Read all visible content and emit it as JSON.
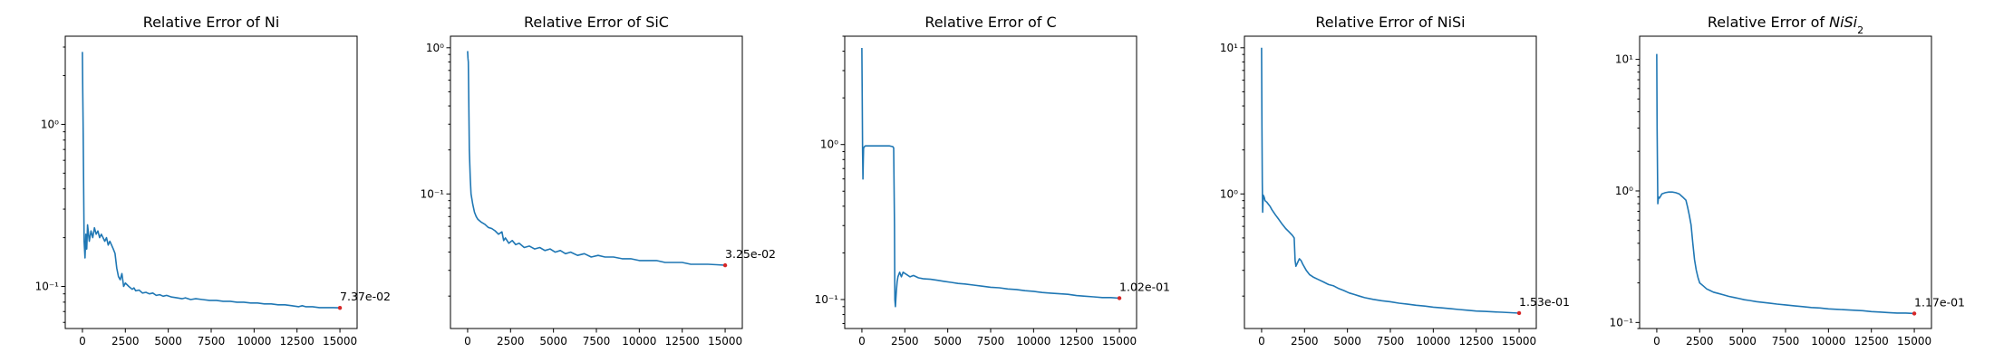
{
  "colors": {
    "series": "#1f77b4",
    "final_marker": "#d62728",
    "axes": "#000000",
    "background": "#ffffff"
  },
  "chart_data": [
    {
      "type": "line",
      "title": "Relative Error of Ni",
      "title_parts": [
        {
          "text": "Relative Error of Ni"
        }
      ],
      "xlabel": "",
      "ylabel": "",
      "yscale": "log",
      "grid": false,
      "legend": "none",
      "xlim": [
        -1000,
        16000
      ],
      "ylim": [
        0.055,
        3.5
      ],
      "xticks": [
        0,
        2500,
        5000,
        7500,
        10000,
        12500,
        15000
      ],
      "xtick_labels": [
        "0",
        "2500",
        "5000",
        "7500",
        "10000",
        "12500",
        "15000"
      ],
      "yticks": [
        0.1,
        1
      ],
      "ytick_labels": [
        "10⁻¹",
        "10⁰"
      ],
      "final_value": {
        "x": 15000,
        "y": 0.0737,
        "label": "7.37e-02"
      },
      "series": [
        {
          "x": [
            0,
            20,
            40,
            60,
            80,
            100,
            150,
            200,
            250,
            300,
            400,
            500,
            600,
            700,
            800,
            900,
            1000,
            1100,
            1200,
            1300,
            1400,
            1500,
            1600,
            1700,
            1800,
            1900,
            2000,
            2100,
            2200,
            2300,
            2400,
            2500,
            2700,
            2900,
            3000,
            3100,
            3300,
            3500,
            3700,
            3900,
            4100,
            4300,
            4500,
            4700,
            4900,
            5200,
            5500,
            5800,
            6000,
            6300,
            6600,
            7000,
            7400,
            7800,
            8200,
            8600,
            9000,
            9400,
            9800,
            10200,
            10600,
            11000,
            11400,
            11800,
            12200,
            12600,
            12800,
            13000,
            13400,
            13800,
            14200,
            14600,
            15000
          ],
          "y": [
            2.8,
            1.6,
            1.0,
            0.55,
            0.3,
            0.19,
            0.15,
            0.21,
            0.17,
            0.24,
            0.19,
            0.22,
            0.2,
            0.23,
            0.21,
            0.22,
            0.2,
            0.21,
            0.2,
            0.19,
            0.2,
            0.18,
            0.19,
            0.18,
            0.17,
            0.16,
            0.13,
            0.115,
            0.11,
            0.12,
            0.1,
            0.105,
            0.1,
            0.096,
            0.098,
            0.094,
            0.095,
            0.091,
            0.092,
            0.09,
            0.091,
            0.088,
            0.089,
            0.087,
            0.088,
            0.086,
            0.085,
            0.084,
            0.085,
            0.083,
            0.084,
            0.083,
            0.082,
            0.082,
            0.081,
            0.081,
            0.08,
            0.08,
            0.079,
            0.079,
            0.078,
            0.078,
            0.077,
            0.077,
            0.076,
            0.075,
            0.076,
            0.075,
            0.075,
            0.074,
            0.074,
            0.074,
            0.0737
          ]
        }
      ]
    },
    {
      "type": "line",
      "title": "Relative Error of SiC",
      "title_parts": [
        {
          "text": "Relative Error of SiC"
        }
      ],
      "xlabel": "",
      "ylabel": "",
      "yscale": "log",
      "grid": false,
      "legend": "none",
      "xlim": [
        -1000,
        16000
      ],
      "ylim": [
        0.012,
        1.2
      ],
      "xticks": [
        0,
        2500,
        5000,
        7500,
        10000,
        12500,
        15000
      ],
      "xtick_labels": [
        "0",
        "2500",
        "5000",
        "7500",
        "10000",
        "12500",
        "15000"
      ],
      "yticks": [
        0.1,
        1
      ],
      "ytick_labels": [
        "10⁻¹",
        "10⁰"
      ],
      "final_value": {
        "x": 15000,
        "y": 0.0325,
        "label": "3.25e-02"
      },
      "series": [
        {
          "x": [
            0,
            20,
            40,
            60,
            80,
            100,
            150,
            200,
            300,
            400,
            500,
            600,
            800,
            1000,
            1200,
            1400,
            1600,
            1800,
            2000,
            2100,
            2200,
            2400,
            2600,
            2800,
            3000,
            3300,
            3600,
            3900,
            4200,
            4500,
            4800,
            5100,
            5400,
            5700,
            6000,
            6400,
            6800,
            7200,
            7600,
            8000,
            8500,
            9000,
            9500,
            10000,
            10500,
            11000,
            11500,
            12000,
            12500,
            13000,
            13500,
            14000,
            14500,
            15000
          ],
          "y": [
            0.95,
            0.85,
            0.8,
            0.5,
            0.3,
            0.2,
            0.13,
            0.1,
            0.085,
            0.075,
            0.07,
            0.067,
            0.064,
            0.062,
            0.059,
            0.058,
            0.056,
            0.053,
            0.055,
            0.048,
            0.05,
            0.046,
            0.048,
            0.045,
            0.046,
            0.043,
            0.044,
            0.042,
            0.043,
            0.041,
            0.042,
            0.04,
            0.041,
            0.039,
            0.04,
            0.038,
            0.039,
            0.037,
            0.038,
            0.037,
            0.037,
            0.036,
            0.036,
            0.035,
            0.035,
            0.035,
            0.034,
            0.034,
            0.034,
            0.033,
            0.033,
            0.033,
            0.0328,
            0.0325
          ]
        }
      ]
    },
    {
      "type": "line",
      "title": "Relative Error of C",
      "title_parts": [
        {
          "text": "Relative Error of C"
        }
      ],
      "xlabel": "",
      "ylabel": "",
      "yscale": "log",
      "grid": false,
      "legend": "none",
      "xlim": [
        -1000,
        16000
      ],
      "ylim": [
        0.065,
        5.0
      ],
      "xticks": [
        0,
        2500,
        5000,
        7500,
        10000,
        12500,
        15000
      ],
      "xtick_labels": [
        "0",
        "2500",
        "5000",
        "7500",
        "10000",
        "12500",
        "15000"
      ],
      "yticks": [
        0.1,
        1
      ],
      "ytick_labels": [
        "10⁻¹",
        "10⁰"
      ],
      "final_value": {
        "x": 15000,
        "y": 0.102,
        "label": "1.02e-01"
      },
      "series": [
        {
          "x": [
            0,
            20,
            40,
            60,
            80,
            100,
            150,
            200,
            300,
            500,
            800,
            1000,
            1300,
            1600,
            1800,
            1850,
            1900,
            1920,
            1950,
            2000,
            2050,
            2100,
            2200,
            2300,
            2400,
            2600,
            2800,
            3000,
            3300,
            3600,
            4000,
            4400,
            4800,
            5200,
            5600,
            6000,
            6500,
            7000,
            7500,
            8000,
            8500,
            9000,
            9500,
            10000,
            10500,
            11000,
            11500,
            12000,
            12500,
            13000,
            13500,
            14000,
            14500,
            15000
          ],
          "y": [
            4.2,
            2.0,
            0.9,
            0.6,
            0.8,
            0.95,
            0.97,
            0.98,
            0.98,
            0.98,
            0.98,
            0.98,
            0.98,
            0.98,
            0.97,
            0.95,
            0.3,
            0.1,
            0.09,
            0.11,
            0.13,
            0.14,
            0.15,
            0.14,
            0.15,
            0.145,
            0.14,
            0.143,
            0.138,
            0.136,
            0.135,
            0.133,
            0.131,
            0.129,
            0.127,
            0.126,
            0.124,
            0.122,
            0.12,
            0.119,
            0.117,
            0.116,
            0.114,
            0.113,
            0.111,
            0.11,
            0.109,
            0.108,
            0.106,
            0.105,
            0.104,
            0.103,
            0.103,
            0.102
          ]
        }
      ]
    },
    {
      "type": "line",
      "title": "Relative Error of NiSi",
      "title_parts": [
        {
          "text": "Relative Error of NiSi"
        }
      ],
      "xlabel": "",
      "ylabel": "",
      "yscale": "log",
      "grid": false,
      "legend": "none",
      "xlim": [
        -1000,
        16000
      ],
      "ylim": [
        0.12,
        12
      ],
      "xticks": [
        0,
        2500,
        5000,
        7500,
        10000,
        12500,
        15000
      ],
      "xtick_labels": [
        "0",
        "2500",
        "5000",
        "7500",
        "10000",
        "12500",
        "15000"
      ],
      "yticks": [
        1,
        10
      ],
      "ytick_labels": [
        "10⁰",
        "10¹"
      ],
      "final_value": {
        "x": 15000,
        "y": 0.153,
        "label": "1.53e-01"
      },
      "series": [
        {
          "x": [
            0,
            20,
            40,
            60,
            80,
            100,
            150,
            200,
            300,
            400,
            500,
            600,
            800,
            1000,
            1200,
            1400,
            1600,
            1800,
            1900,
            1950,
            2000,
            2100,
            2200,
            2300,
            2400,
            2600,
            2800,
            3000,
            3300,
            3600,
            3900,
            4200,
            4500,
            4800,
            5100,
            5400,
            5700,
            6000,
            6500,
            7000,
            7500,
            8000,
            8500,
            9000,
            9500,
            10000,
            10500,
            11000,
            11500,
            12000,
            12500,
            13000,
            13500,
            14000,
            14500,
            15000
          ],
          "y": [
            10.0,
            3.0,
            1.2,
            0.75,
            0.9,
            0.98,
            0.95,
            0.9,
            0.88,
            0.85,
            0.82,
            0.78,
            0.72,
            0.67,
            0.62,
            0.58,
            0.55,
            0.52,
            0.5,
            0.35,
            0.32,
            0.34,
            0.36,
            0.35,
            0.33,
            0.3,
            0.28,
            0.27,
            0.26,
            0.25,
            0.24,
            0.235,
            0.225,
            0.218,
            0.21,
            0.205,
            0.2,
            0.195,
            0.19,
            0.186,
            0.183,
            0.179,
            0.176,
            0.173,
            0.171,
            0.168,
            0.166,
            0.164,
            0.162,
            0.16,
            0.158,
            0.157,
            0.156,
            0.155,
            0.154,
            0.153
          ]
        }
      ]
    },
    {
      "type": "line",
      "title": "Relative Error of NiSi₂",
      "title_parts": [
        {
          "text": "Relative Error of "
        },
        {
          "text": "NiSi",
          "italic": true
        },
        {
          "text": "2",
          "sub": true
        }
      ],
      "xlabel": "",
      "ylabel": "",
      "yscale": "log",
      "grid": false,
      "legend": "none",
      "xlim": [
        -1000,
        16000
      ],
      "ylim": [
        0.09,
        15
      ],
      "xticks": [
        0,
        2500,
        5000,
        7500,
        10000,
        12500,
        15000
      ],
      "xtick_labels": [
        "0",
        "2500",
        "5000",
        "7500",
        "10000",
        "12500",
        "15000"
      ],
      "yticks": [
        0.1,
        1,
        10
      ],
      "ytick_labels": [
        "10⁻¹",
        "10⁰",
        "10¹"
      ],
      "final_value": {
        "x": 15000,
        "y": 0.117,
        "label": "1.17e-01"
      },
      "series": [
        {
          "x": [
            0,
            20,
            40,
            60,
            80,
            100,
            150,
            200,
            300,
            500,
            700,
            900,
            1100,
            1300,
            1500,
            1700,
            1800,
            1900,
            2000,
            2100,
            2200,
            2300,
            2400,
            2500,
            2700,
            2900,
            3100,
            3300,
            3600,
            3900,
            4200,
            4500,
            4800,
            5100,
            5400,
            5800,
            6200,
            6600,
            7000,
            7500,
            8000,
            8500,
            9000,
            9500,
            10000,
            10500,
            11000,
            11500,
            12000,
            12500,
            13000,
            13500,
            14000,
            14500,
            15000
          ],
          "y": [
            11.0,
            3.0,
            1.5,
            0.8,
            0.85,
            0.9,
            0.88,
            0.9,
            0.95,
            0.97,
            0.98,
            0.98,
            0.97,
            0.95,
            0.9,
            0.85,
            0.75,
            0.65,
            0.55,
            0.4,
            0.3,
            0.25,
            0.22,
            0.2,
            0.19,
            0.18,
            0.175,
            0.17,
            0.166,
            0.162,
            0.158,
            0.155,
            0.152,
            0.149,
            0.147,
            0.144,
            0.142,
            0.14,
            0.138,
            0.136,
            0.134,
            0.132,
            0.13,
            0.129,
            0.127,
            0.126,
            0.125,
            0.124,
            0.123,
            0.121,
            0.12,
            0.119,
            0.118,
            0.118,
            0.117
          ]
        }
      ]
    }
  ]
}
